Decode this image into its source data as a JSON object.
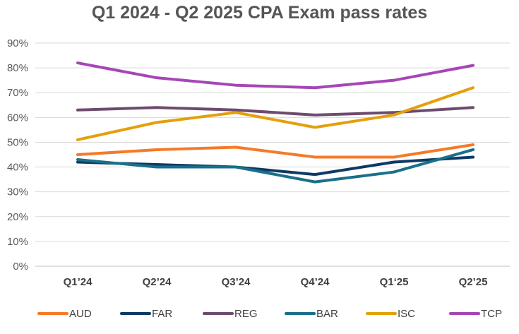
{
  "chart_data": {
    "type": "line",
    "title": "Q1 2024 - Q2 2025 CPA Exam pass rates",
    "xlabel": "",
    "ylabel": "",
    "categories": [
      "Q1’24",
      "Q2’24",
      "Q3’24",
      "Q4’24",
      "Q1‘25",
      "Q2’25"
    ],
    "y_ticks": [
      "0%",
      "10%",
      "20%",
      "30%",
      "40%",
      "50%",
      "60%",
      "70%",
      "80%",
      "90%"
    ],
    "ylim": [
      0,
      90
    ],
    "grid": true,
    "legend_position": "bottom",
    "series": [
      {
        "name": "AUD",
        "color": "#F47A2A",
        "values": [
          45,
          47,
          48,
          44,
          44,
          49
        ]
      },
      {
        "name": "FAR",
        "color": "#0E3A64",
        "values": [
          42,
          41,
          40,
          37,
          42,
          44
        ]
      },
      {
        "name": "REG",
        "color": "#6E4B6E",
        "values": [
          63,
          64,
          63,
          61,
          62,
          64
        ]
      },
      {
        "name": "BAR",
        "color": "#19708A",
        "values": [
          43,
          40,
          40,
          34,
          38,
          47
        ]
      },
      {
        "name": "ISC",
        "color": "#E3A00B",
        "values": [
          51,
          58,
          62,
          56,
          61,
          72
        ]
      },
      {
        "name": "TCP",
        "color": "#A646B6",
        "values": [
          82,
          76,
          73,
          72,
          75,
          81
        ]
      }
    ]
  }
}
